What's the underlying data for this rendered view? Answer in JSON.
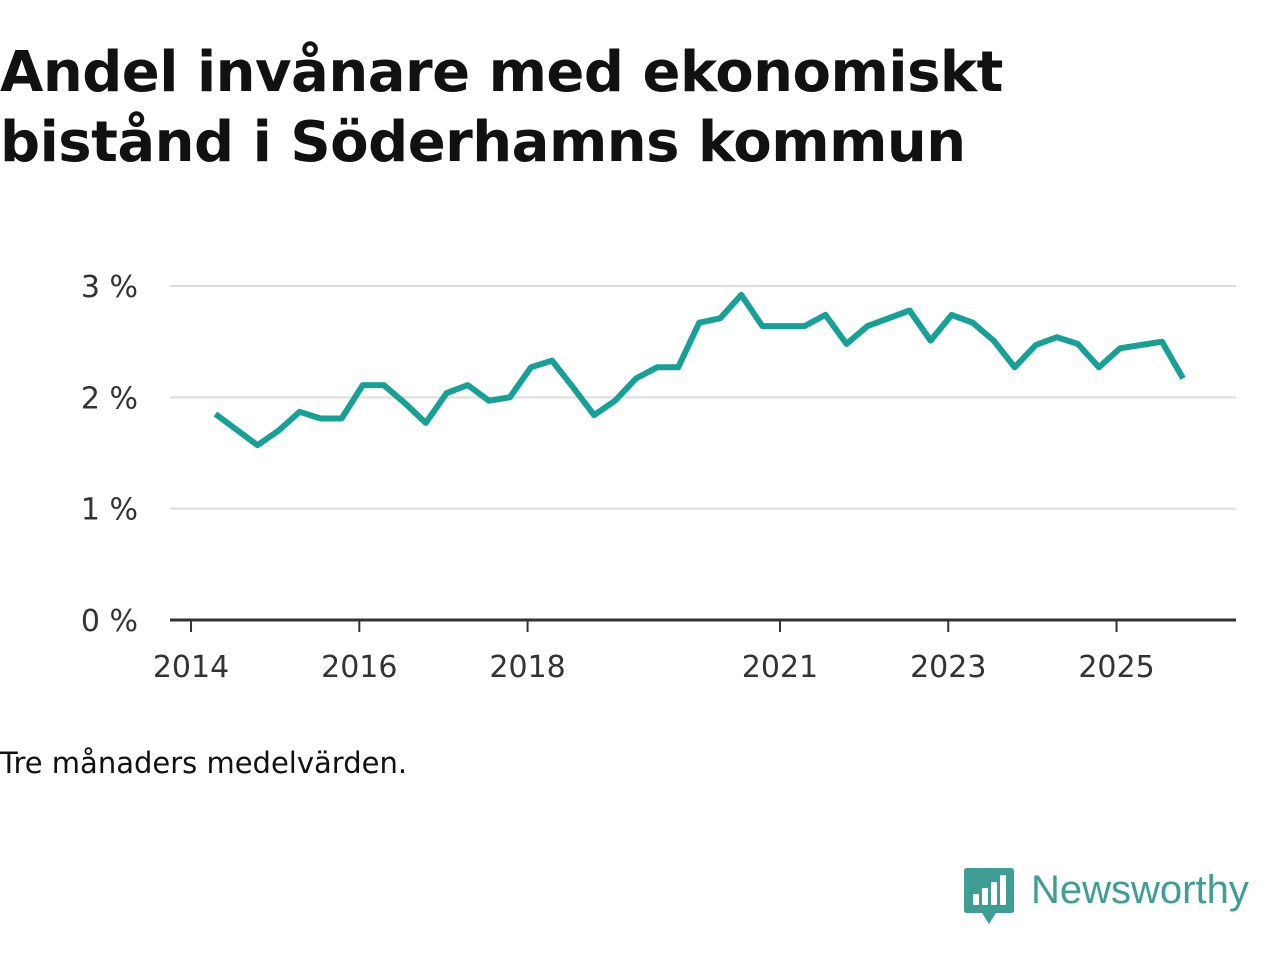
{
  "chart_data": {
    "type": "line",
    "title": "Andel invånare med ekonomiskt bistånd i Söderhamns kommun",
    "note": "Tre månaders medelvärden.",
    "xlabel": "",
    "ylabel": "",
    "ylim": [
      0,
      3
    ],
    "yticks": [
      0,
      1,
      2,
      3
    ],
    "ytick_labels": [
      "0 %",
      "1 %",
      "2 %",
      "3 %"
    ],
    "xlim": [
      2013.75,
      2026.42
    ],
    "xticks": [
      2014,
      2016,
      2018,
      2021,
      2023,
      2025
    ],
    "xtick_labels": [
      "2014",
      "2016",
      "2018",
      "2021",
      "2023",
      "2025"
    ],
    "grid": true,
    "series": [
      {
        "name": "Andel invånare med ekonomiskt bistånd",
        "color": "#17a096",
        "x": [
          2014.29,
          2014.54,
          2014.79,
          2015.04,
          2015.29,
          2015.54,
          2015.79,
          2016.04,
          2016.29,
          2016.54,
          2016.79,
          2017.04,
          2017.29,
          2017.54,
          2017.79,
          2018.04,
          2018.29,
          2018.54,
          2018.79,
          2019.04,
          2019.29,
          2019.54,
          2019.79,
          2020.04,
          2020.29,
          2020.54,
          2020.79,
          2021.04,
          2021.29,
          2021.54,
          2021.79,
          2022.04,
          2022.29,
          2022.54,
          2022.79,
          2023.04,
          2023.29,
          2023.54,
          2023.79,
          2024.04,
          2024.29,
          2024.54,
          2024.79,
          2025.04,
          2025.29,
          2025.54,
          2025.79
        ],
        "values": [
          1.85,
          1.71,
          1.57,
          1.7,
          1.87,
          1.81,
          1.81,
          2.11,
          2.11,
          1.95,
          1.77,
          2.04,
          2.11,
          1.97,
          2.0,
          2.27,
          2.33,
          2.09,
          1.84,
          1.97,
          2.17,
          2.27,
          2.27,
          2.67,
          2.71,
          2.92,
          2.64,
          2.64,
          2.64,
          2.74,
          2.48,
          2.64,
          2.71,
          2.78,
          2.51,
          2.74,
          2.67,
          2.51,
          2.27,
          2.47,
          2.54,
          2.48,
          2.27,
          2.44,
          2.47,
          2.5,
          2.17
        ]
      }
    ]
  },
  "branding": {
    "name": "Newsworthy",
    "color": "#3e9e94"
  },
  "colors": {
    "gridline": "#dddddd",
    "axis": "#333333",
    "tick_text": "#333333"
  }
}
